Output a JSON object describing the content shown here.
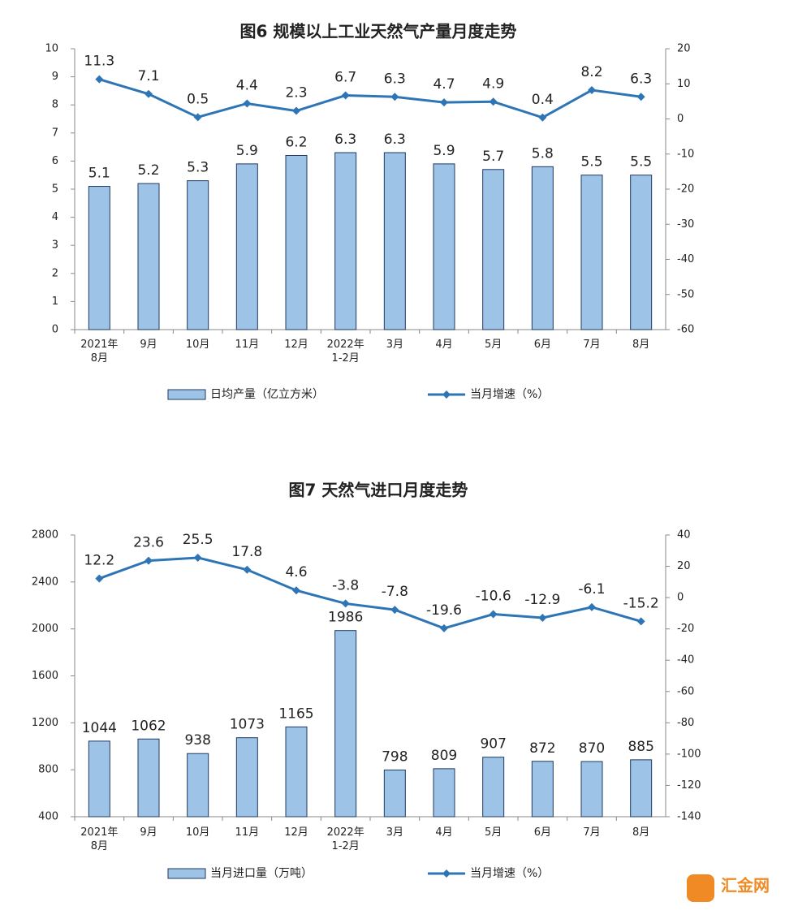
{
  "chart_data": [
    {
      "type": "bar-line",
      "title": "图6 规模以上工业天然气产量月度走势",
      "categories": [
        "2021年8月",
        "9月",
        "10月",
        "11月",
        "12月",
        "2022年1-2月",
        "3月",
        "4月",
        "5月",
        "6月",
        "7月",
        "8月"
      ],
      "series": [
        {
          "name": "日均产量（亿立方米）",
          "type": "bar",
          "color": "#9dc3e6",
          "values": [
            5.1,
            5.2,
            5.3,
            5.9,
            6.2,
            6.3,
            6.3,
            5.9,
            5.7,
            5.8,
            5.5,
            5.5
          ]
        },
        {
          "name": "当月增速（%）",
          "type": "line",
          "axis": "y2",
          "color": "#2e75b6",
          "values": [
            11.3,
            7.1,
            0.5,
            4.4,
            2.3,
            6.7,
            6.3,
            4.7,
            4.9,
            0.4,
            8.2,
            6.3
          ]
        }
      ],
      "ylim": [
        0,
        10
      ],
      "yticks": [
        0,
        1,
        2,
        3,
        4,
        5,
        6,
        7,
        8,
        9,
        10
      ],
      "y2lim": [
        -60,
        20
      ],
      "y2ticks": [
        -60,
        -50,
        -40,
        -30,
        -20,
        -10,
        0,
        10,
        20
      ],
      "grid": false,
      "legend": "bottom"
    },
    {
      "type": "bar-line",
      "title": "图7 天然气进口月度走势",
      "categories": [
        "2021年8月",
        "9月",
        "10月",
        "11月",
        "12月",
        "2022年1-2月",
        "3月",
        "4月",
        "5月",
        "6月",
        "7月",
        "8月"
      ],
      "series": [
        {
          "name": "当月进口量（万吨）",
          "type": "bar",
          "color": "#9dc3e6",
          "values": [
            1044,
            1062,
            938,
            1073,
            1165,
            1986,
            798,
            809,
            907,
            872,
            870,
            885
          ]
        },
        {
          "name": "当月增速（%）",
          "type": "line",
          "axis": "y2",
          "color": "#2e75b6",
          "values": [
            12.2,
            23.6,
            25.5,
            17.8,
            4.6,
            -3.8,
            -7.8,
            -19.6,
            -10.6,
            -12.9,
            -6.1,
            -15.2
          ]
        }
      ],
      "ylim": [
        400,
        2800
      ],
      "yticks": [
        400,
        800,
        1200,
        1600,
        2000,
        2400,
        2800
      ],
      "y2lim": [
        -140,
        40
      ],
      "y2ticks": [
        -140,
        -120,
        -100,
        -80,
        -60,
        -40,
        -20,
        0,
        20,
        40
      ],
      "grid": false,
      "legend": "bottom"
    }
  ],
  "watermark": "汇金网"
}
